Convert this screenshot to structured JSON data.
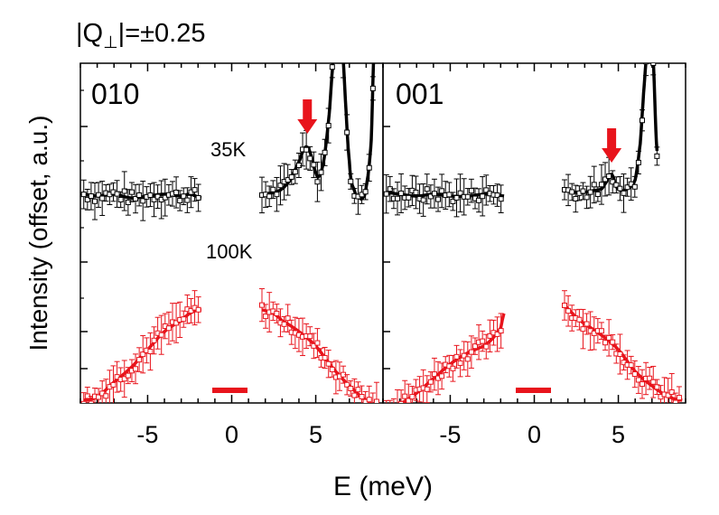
{
  "figure": {
    "header": "|Q⊥|=±0.25",
    "header_parts": {
      "lead": "|Q",
      "sub": "⊥",
      "tail": "|=±0.25"
    }
  },
  "colors": {
    "cold": "#000000",
    "warm": "#e8141c",
    "arrow": "#e8141c"
  },
  "chart_data": [
    {
      "type": "line",
      "panel_label": "010",
      "xlabel": "E (meV)",
      "ylabel": "Intensity (offset, a.u.)",
      "xlim": [
        -9,
        9
      ],
      "xticks": [
        -5,
        0,
        5
      ],
      "grid": false,
      "series": [
        {
          "name": "35K",
          "x": [
            -8.8,
            -8,
            -7,
            -6,
            -5,
            -4,
            -3,
            -2.5,
            -1.8,
            1.8,
            2.5,
            3,
            3.5,
            3.8,
            4,
            4.3,
            4.5,
            4.7,
            5,
            5.2,
            5.5,
            5.8,
            6,
            6.1,
            6.5,
            7,
            7.3,
            7.6,
            7.8,
            8,
            8.3,
            8.5
          ],
          "y": [
            0.0,
            -0.05,
            0.0,
            -0.1,
            -0.05,
            0.0,
            -0.05,
            0.0,
            -0.1,
            0.0,
            0.05,
            0.15,
            0.4,
            0.7,
            0.9,
            1.25,
            1.3,
            1.1,
            0.6,
            0.5,
            1.0,
            2.2,
            3.5,
            4.5,
            4.5,
            0.9,
            0.1,
            -0.1,
            -0.1,
            0.2,
            1.5,
            4.5
          ]
        },
        {
          "name": "100K",
          "x": [
            -8.8,
            -8,
            -7,
            -6,
            -5,
            -4,
            -3,
            -2.5,
            -2,
            -1.8,
            1.8,
            2.5,
            3,
            4,
            5,
            6,
            7,
            8,
            8.8
          ],
          "y": [
            -5.7,
            -5.6,
            -5.2,
            -4.8,
            -4.3,
            -3.8,
            -3.5,
            -3.3,
            -3.2,
            -3.2,
            -3.2,
            -3.3,
            -3.5,
            -3.8,
            -4.2,
            -4.8,
            -5.3,
            -5.7,
            -5.9
          ]
        }
      ],
      "labels_on_panel": [
        "35K",
        "100K"
      ],
      "annotation": {
        "type": "arrow",
        "x": 4.5,
        "target": "35K peak"
      }
    },
    {
      "type": "line",
      "panel_label": "001",
      "xlabel": "E (meV)",
      "xlim": [
        -9,
        9
      ],
      "xticks": [
        -5,
        0,
        5
      ],
      "grid": false,
      "series": [
        {
          "name": "35K",
          "x": [
            -8.8,
            -8,
            -7,
            -6,
            -5,
            -4,
            -3,
            -2.5,
            -1.8,
            1.8,
            2.5,
            3,
            3.5,
            4,
            4.3,
            4.6,
            4.9,
            5.2,
            5.5,
            6,
            6.3,
            6.5,
            6.8,
            7,
            7.3
          ],
          "y": [
            0.05,
            0.0,
            -0.05,
            0.0,
            -0.05,
            -0.05,
            0.0,
            0.0,
            -0.05,
            0.1,
            0.05,
            0.05,
            0.1,
            0.15,
            0.35,
            0.55,
            0.2,
            0.1,
            0.15,
            0.4,
            1.4,
            2.8,
            4.5,
            4.5,
            1.2
          ]
        },
        {
          "name": "100K",
          "x": [
            -8.8,
            -8,
            -7,
            -6,
            -5,
            -4,
            -3,
            -2.5,
            -2,
            -1.8,
            1.8,
            2.5,
            3,
            4,
            5,
            6,
            7,
            8,
            8.8
          ],
          "y": [
            -5.9,
            -5.8,
            -5.5,
            -5.1,
            -4.7,
            -4.4,
            -4.2,
            -4.0,
            -3.7,
            -3.3,
            -3.1,
            -3.4,
            -3.6,
            -3.9,
            -4.3,
            -4.9,
            -5.3,
            -5.6,
            -5.7
          ]
        }
      ],
      "annotation": {
        "type": "arrow",
        "x": 4.6,
        "target": "35K peak"
      }
    }
  ]
}
